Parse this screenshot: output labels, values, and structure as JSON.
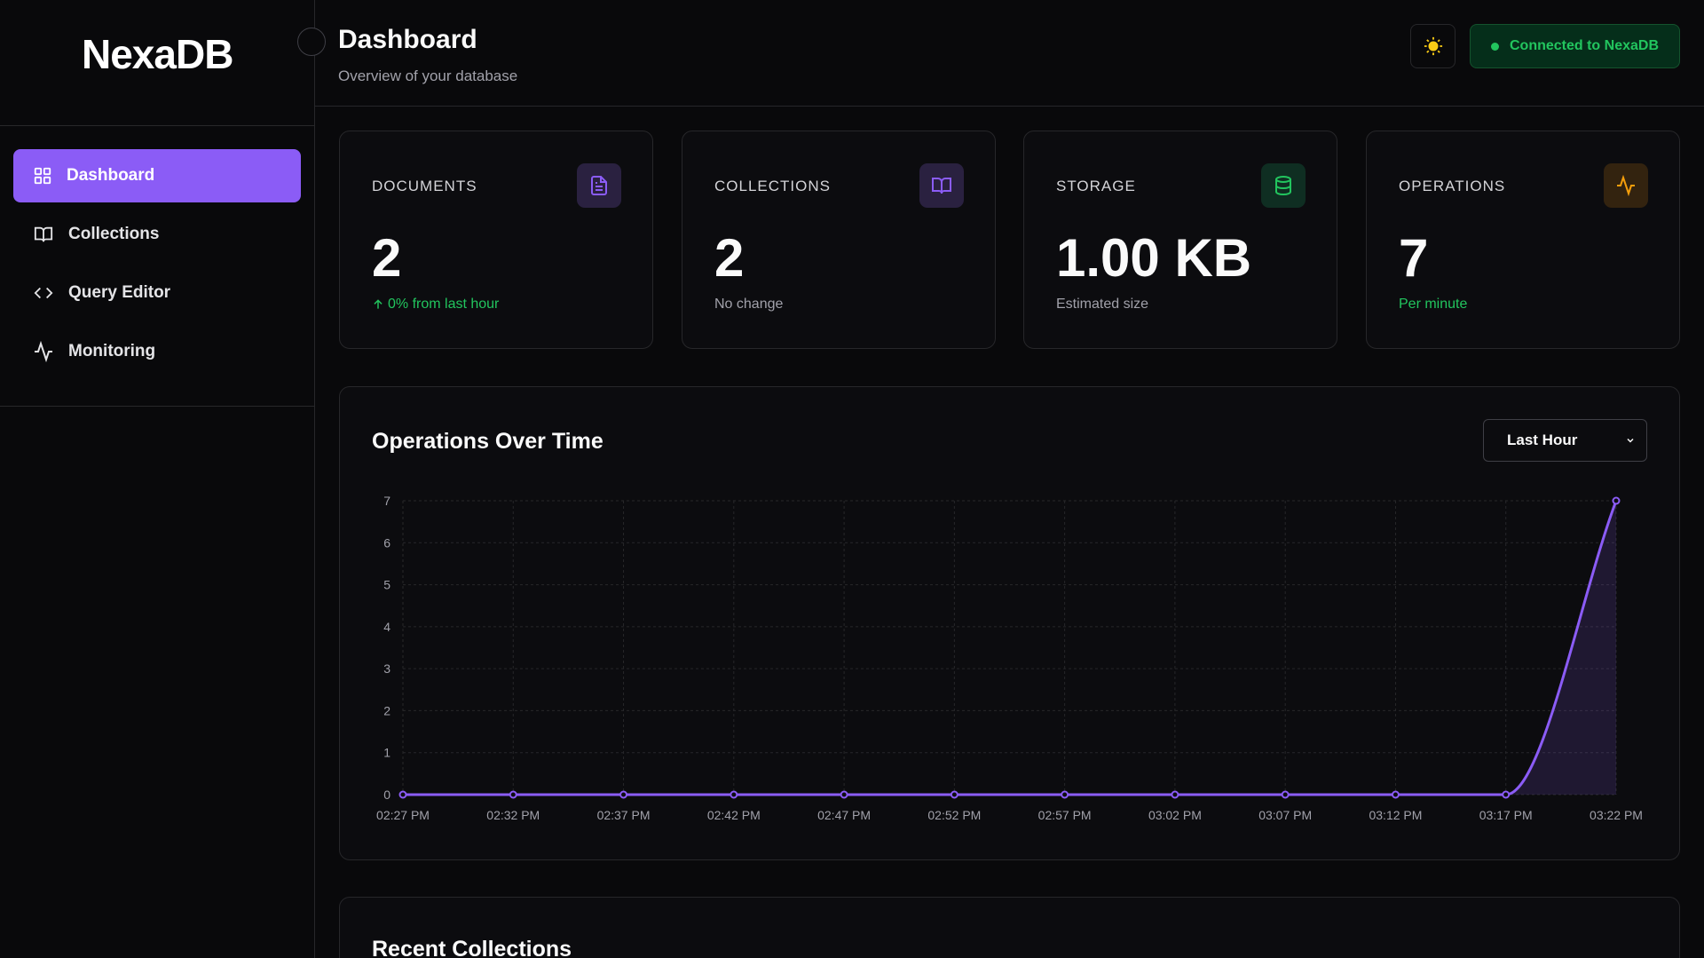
{
  "sidebar": {
    "logo": "NexaDB",
    "nav": [
      "Dashboard",
      "Collections",
      "Query Editor",
      "Monitoring"
    ]
  },
  "header": {
    "title": "Dashboard",
    "subtitle": "Overview of your database",
    "status": "Connected to NexaDB"
  },
  "stats": [
    {
      "label": "DOCUMENTS",
      "value": "2",
      "note": "0% from last hour"
    },
    {
      "label": "COLLECTIONS",
      "value": "2",
      "note": "No change"
    },
    {
      "label": "STORAGE",
      "value": "1.00 KB",
      "note": "Estimated size"
    },
    {
      "label": "OPERATIONS",
      "value": "7",
      "note": "Per minute"
    }
  ],
  "chart_controls": {
    "range": "Last Hour"
  },
  "chart_data": {
    "type": "line",
    "title": "Operations Over Time",
    "categories": [
      "02:27 PM",
      "02:32 PM",
      "02:37 PM",
      "02:42 PM",
      "02:47 PM",
      "02:52 PM",
      "02:57 PM",
      "03:02 PM",
      "03:07 PM",
      "03:12 PM",
      "03:17 PM",
      "03:22 PM"
    ],
    "values": [
      0,
      0,
      0,
      0,
      0,
      0,
      0,
      0,
      0,
      0,
      0,
      7
    ],
    "color": "#8b5cf6",
    "ylim": [
      0,
      7
    ],
    "yticks": [
      0,
      1,
      2,
      3,
      4,
      5,
      6,
      7
    ],
    "grid": true
  },
  "recent": {
    "title": "Recent Collections"
  }
}
